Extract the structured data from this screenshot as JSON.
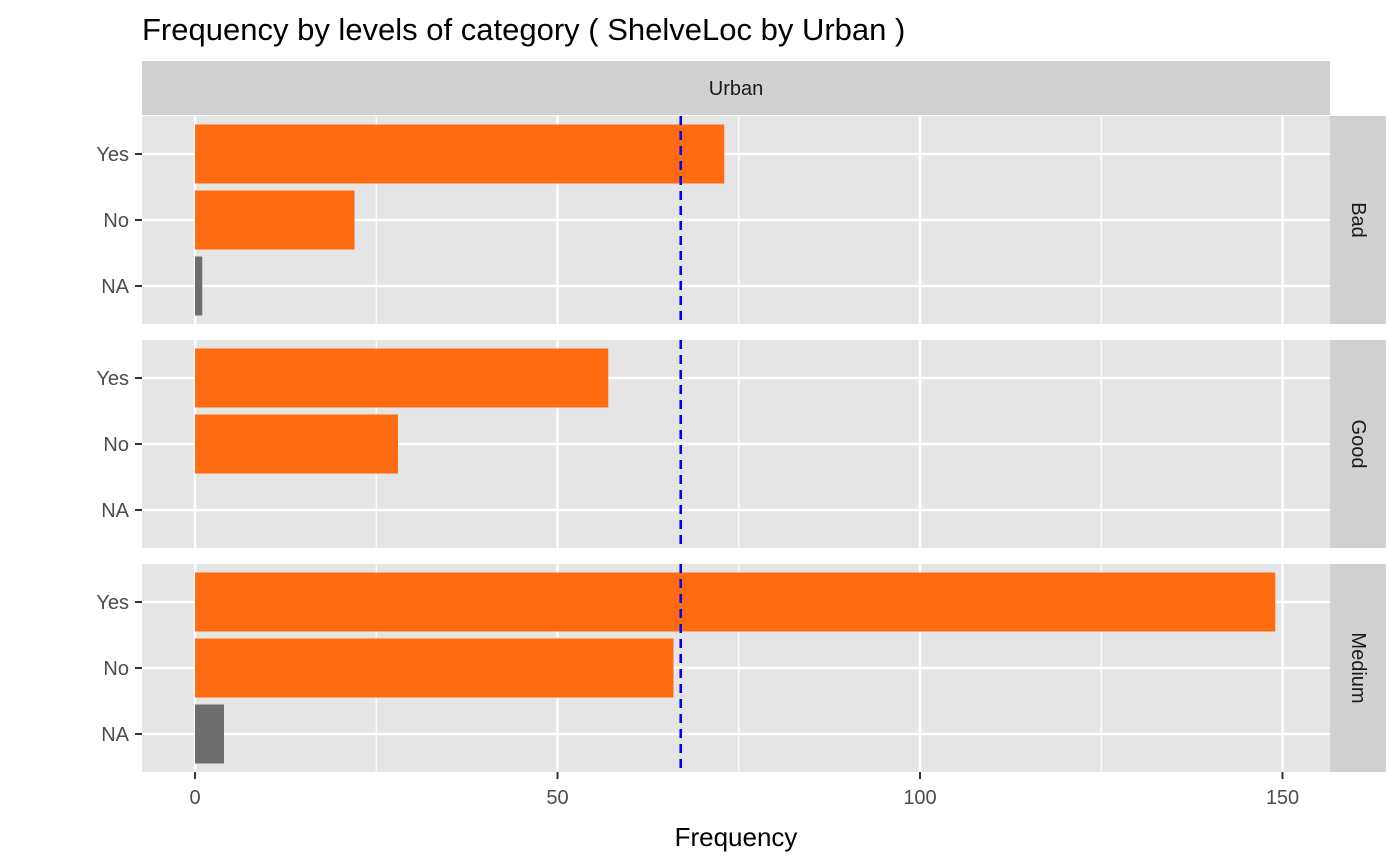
{
  "chart_data": {
    "type": "bar",
    "orientation": "horizontal",
    "title": "Frequency by levels of category ( ShelveLoc by Urban )",
    "xlabel": "Frequency",
    "ylabel": "",
    "column_strip": "Urban",
    "categories": [
      "Yes",
      "No",
      "NA"
    ],
    "xlim": [
      -7,
      157
    ],
    "xticks": [
      0,
      50,
      100,
      150
    ],
    "reference_line": {
      "value": 67,
      "style": "dashed",
      "color": "#0000ee"
    },
    "grid": true,
    "colors": {
      "level": "#fe6b10",
      "missing": "#6e6e6e",
      "panel": "#e5e5e5",
      "strip": "#d1d1d1",
      "grid": "#ffffff"
    },
    "facets": [
      {
        "name": "Bad",
        "values": [
          73,
          22,
          1
        ]
      },
      {
        "name": "Good",
        "values": [
          57,
          28,
          0
        ]
      },
      {
        "name": "Medium",
        "values": [
          149,
          66,
          4
        ]
      }
    ]
  }
}
